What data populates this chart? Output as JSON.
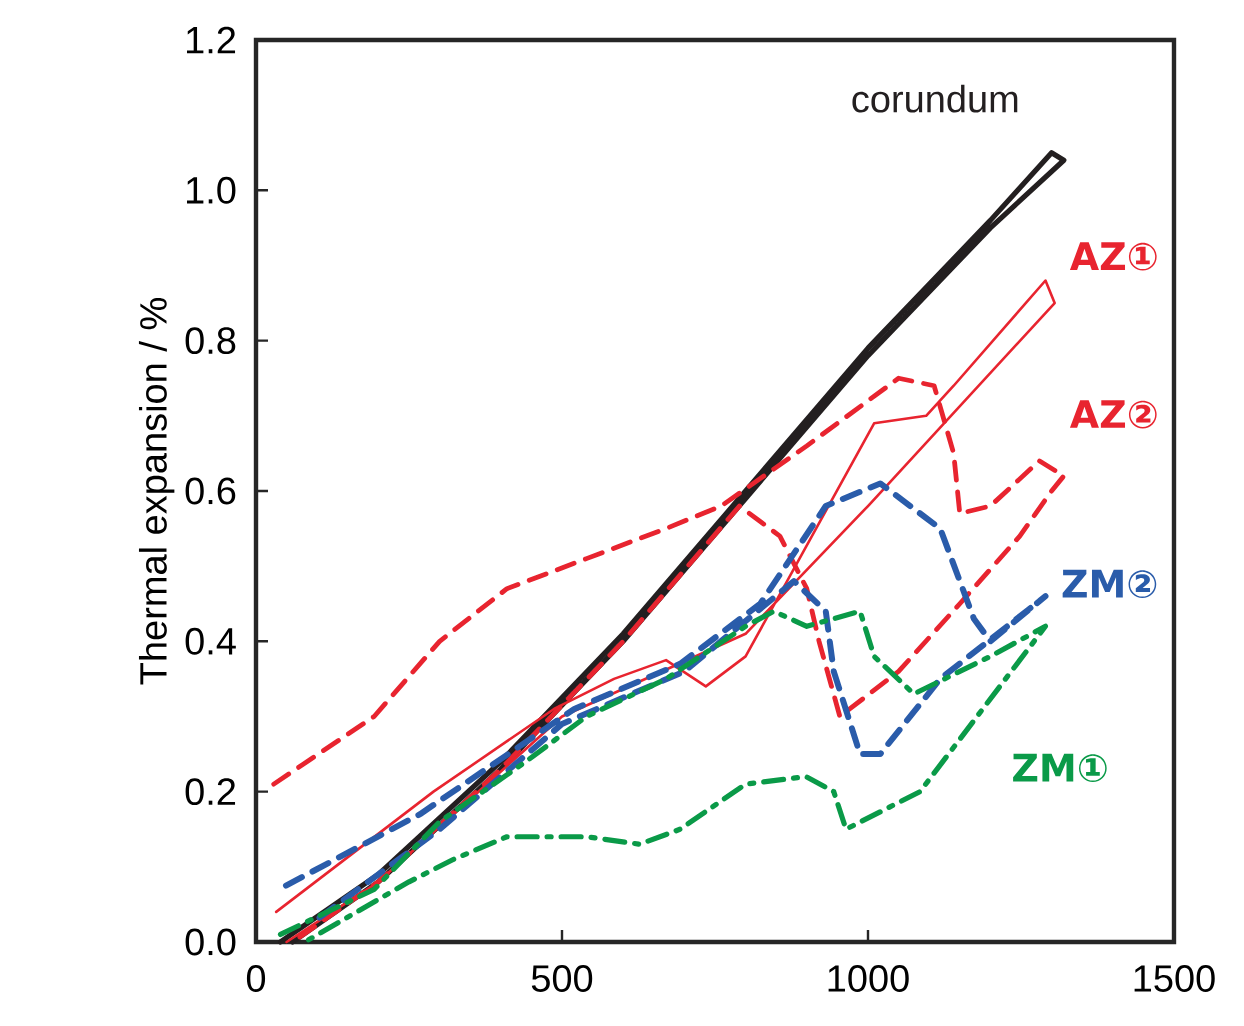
{
  "chart_data": {
    "type": "line",
    "ylabel": "Thermal expansion / %",
    "xlim": [
      0,
      1500
    ],
    "xticks": [
      0,
      500,
      1000,
      1500
    ],
    "ylim": [
      0,
      1.2
    ],
    "yticks": [
      {
        "value": 0,
        "label": "0.0"
      },
      {
        "value": 0.2,
        "label": "0.2"
      },
      {
        "value": 0.4,
        "label": "0.4"
      },
      {
        "value": 0.6,
        "label": "0.6"
      },
      {
        "value": 0.8,
        "label": "0.8"
      },
      {
        "value": 1.0,
        "label": "1.0"
      },
      {
        "value": 1.2,
        "label": "1.2"
      }
    ],
    "grid": false,
    "marker": "none",
    "series": [
      {
        "name": "corundum",
        "color": "#231f20",
        "line_style": "solid",
        "x": [
          40,
          200,
          400,
          600,
          800,
          1000,
          1200,
          1300,
          1320,
          1200,
          1000,
          800,
          600,
          400,
          200,
          60
        ],
        "values": [
          0,
          0.09,
          0.24,
          0.41,
          0.6,
          0.79,
          0.96,
          1.05,
          1.04,
          0.95,
          0.78,
          0.59,
          0.4,
          0.23,
          0.08,
          0
        ]
      },
      {
        "name": "AZ①",
        "color": "#e8242f",
        "line_style": "solid",
        "x": [
          33,
          290,
          487,
          585,
          670,
          735,
          800,
          1010,
          1095,
          1140,
          1290,
          1305,
          1000,
          800,
          500,
          200,
          50
        ],
        "values": [
          0.04,
          0.2,
          0.31,
          0.35,
          0.375,
          0.34,
          0.38,
          0.69,
          0.7,
          0.74,
          0.88,
          0.85,
          0.58,
          0.41,
          0.3,
          0.08,
          0
        ]
      },
      {
        "name": "AZ②",
        "color": "#e8242f",
        "line_style": "dashed",
        "x": [
          29,
          193,
          300,
          410,
          540,
          670,
          760,
          900,
          1050,
          1108,
          1140,
          1150,
          1200,
          1280,
          1320,
          1300,
          1248,
          1150,
          1050,
          954,
          920,
          900,
          856,
          790,
          600,
          400,
          200,
          60
        ],
        "values": [
          0.21,
          0.3,
          0.4,
          0.47,
          0.51,
          0.55,
          0.58,
          0.66,
          0.75,
          0.74,
          0.65,
          0.57,
          0.58,
          0.64,
          0.62,
          0.6,
          0.54,
          0.45,
          0.36,
          0.3,
          0.4,
          0.47,
          0.54,
          0.58,
          0.4,
          0.23,
          0.08,
          0
        ]
      },
      {
        "name": "ZM②",
        "color": "#2a5caa",
        "line_style": "dashed",
        "x": [
          49,
          268,
          520,
          693,
          824,
          931,
          1020,
          1118,
          1173,
          1200,
          1290,
          1118,
          1020,
          987,
          944,
          931,
          879,
          700,
          500,
          300,
          100
        ],
        "values": [
          0.075,
          0.17,
          0.31,
          0.37,
          0.45,
          0.58,
          0.61,
          0.55,
          0.43,
          0.4,
          0.46,
          0.35,
          0.25,
          0.25,
          0.36,
          0.44,
          0.48,
          0.36,
          0.29,
          0.15,
          0.03
        ]
      },
      {
        "name": "ZM①",
        "color": "#0a9a48",
        "line_style": "dashdot",
        "x": [
          40,
          193,
          300,
          441,
          540,
          670,
          800,
          846,
          900,
          987,
          1010,
          1075,
          1200,
          1290,
          1085,
          964,
          944,
          899,
          800,
          693,
          627,
          540,
          410,
          323,
          250,
          80
        ],
        "values": [
          0.01,
          0.07,
          0.16,
          0.24,
          0.3,
          0.35,
          0.42,
          0.44,
          0.42,
          0.44,
          0.38,
          0.33,
          0.38,
          0.42,
          0.2,
          0.15,
          0.2,
          0.22,
          0.21,
          0.15,
          0.13,
          0.14,
          0.14,
          0.11,
          0.08,
          0
        ]
      }
    ]
  }
}
